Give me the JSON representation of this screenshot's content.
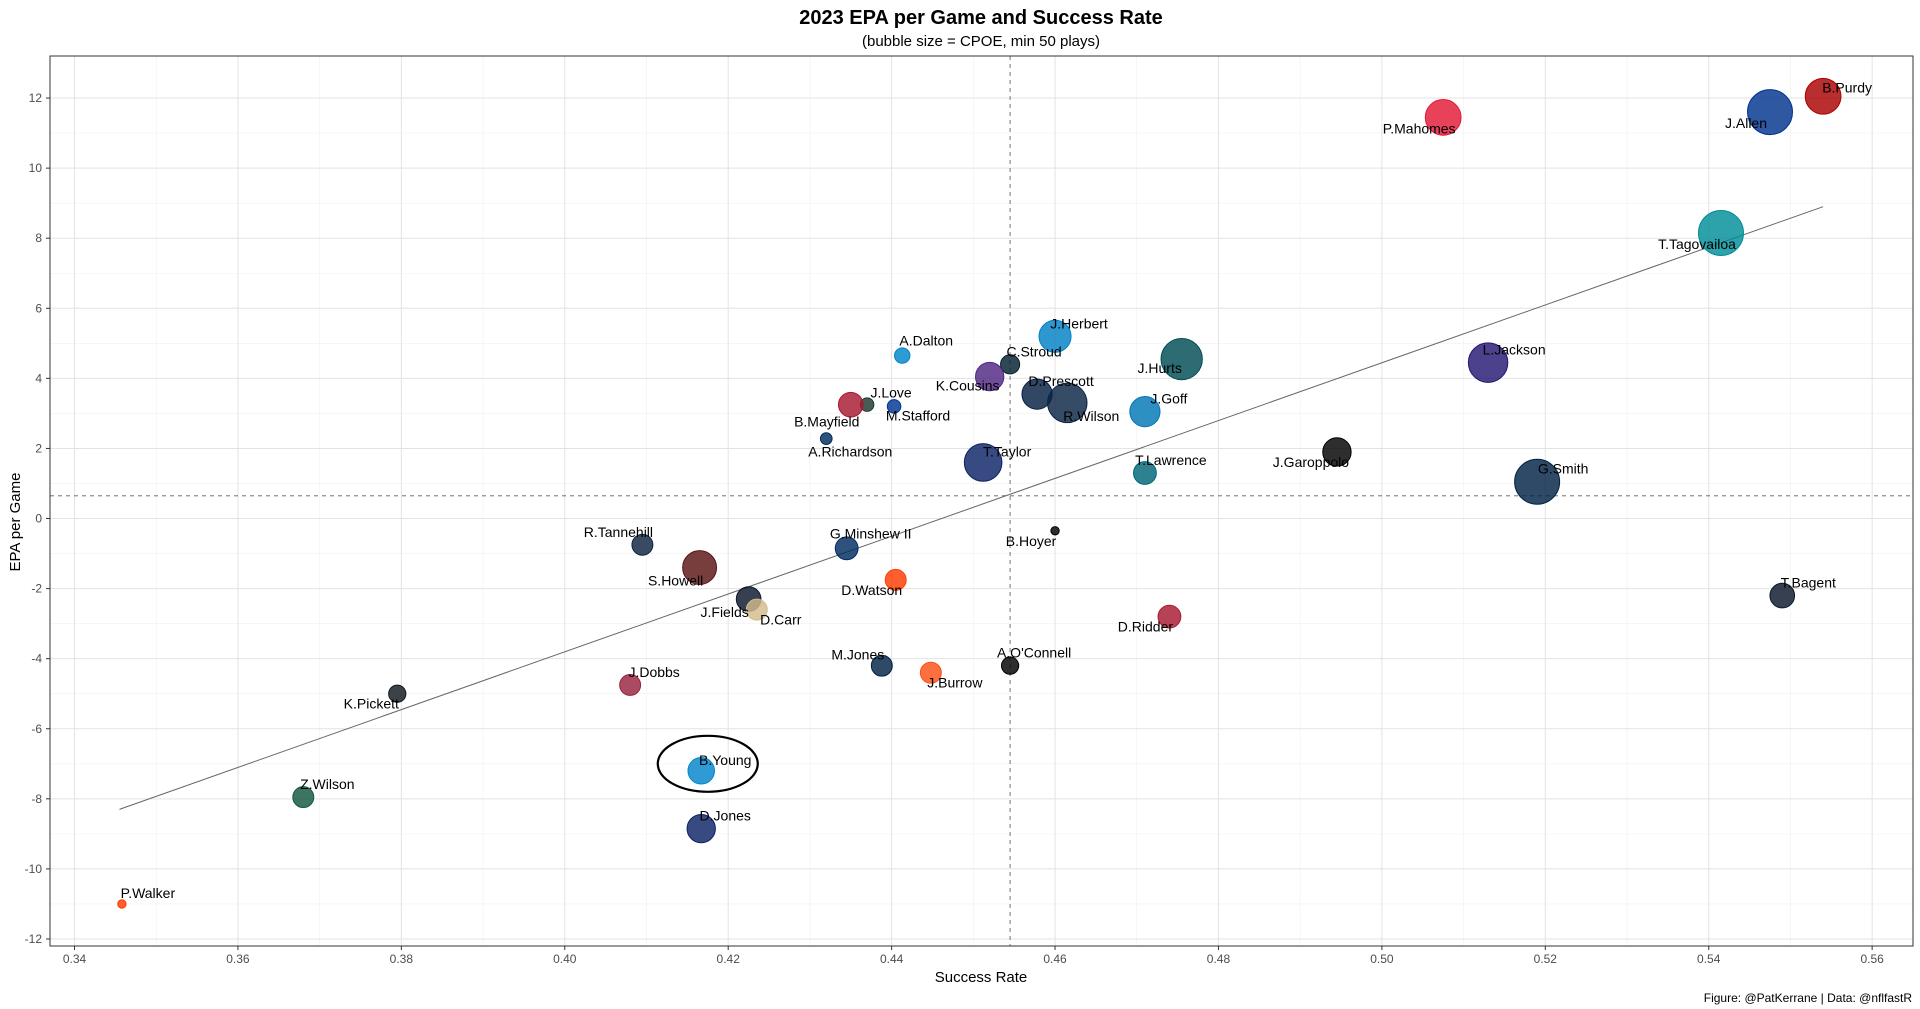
{
  "chart_data": {
    "type": "scatter",
    "title": "2023 EPA per Game and Success Rate",
    "subtitle": "(bubble size = CPOE, min 50 plays)",
    "xlabel": "Success Rate",
    "ylabel": "EPA per Game",
    "caption": "Figure: @PatKerrane | Data: @nflfastR",
    "xlim": [
      0.337,
      0.565
    ],
    "ylim": [
      -12.2,
      13.2
    ],
    "xticks": [
      0.34,
      0.36,
      0.38,
      0.4,
      0.42,
      0.44,
      0.46,
      0.48,
      0.5,
      0.52,
      0.54,
      0.56
    ],
    "xtick_labels": [
      "0.34",
      "0.36",
      "0.38",
      "0.40",
      "0.42",
      "0.44",
      "0.46",
      "0.48",
      "0.50",
      "0.52",
      "0.54",
      "0.56"
    ],
    "yticks": [
      -12,
      -10,
      -8,
      -6,
      -4,
      -2,
      0,
      2,
      4,
      6,
      8,
      10,
      12
    ],
    "ytick_labels": [
      "-12",
      "-10",
      "-8",
      "-6",
      "-4",
      "-2",
      "0",
      "2",
      "4",
      "6",
      "8",
      "10",
      "12"
    ],
    "grid": true,
    "mean_lines": {
      "x": 0.4545,
      "y": 0.65
    },
    "trend_line": {
      "x": [
        0.3455,
        0.554
      ],
      "y": [
        -8.3,
        8.9
      ]
    },
    "highlight": {
      "label": "B.Young",
      "x": 0.4175,
      "y": -7.0
    },
    "points": [
      {
        "label": "B.Purdy",
        "x": 0.554,
        "y": 12.05,
        "size": 7.5,
        "color": "#AA0000"
      },
      {
        "label": "J.Allen",
        "x": 0.5475,
        "y": 11.6,
        "size": 10,
        "color": "#00338D"
      },
      {
        "label": "P.Mahomes",
        "x": 0.5075,
        "y": 11.45,
        "size": 7.5,
        "color": "#E31837"
      },
      {
        "label": "T.Tagovailoa",
        "x": 0.5415,
        "y": 8.15,
        "size": 10,
        "color": "#008E97"
      },
      {
        "label": "L.Jackson",
        "x": 0.513,
        "y": 4.45,
        "size": 8.5,
        "color": "#241773"
      },
      {
        "label": "J.Herbert",
        "x": 0.46,
        "y": 5.2,
        "size": 6.5,
        "color": "#0080C6"
      },
      {
        "label": "J.Hurts",
        "x": 0.4755,
        "y": 4.55,
        "size": 9,
        "color": "#004C54"
      },
      {
        "label": "A.Dalton",
        "x": 0.4413,
        "y": 4.65,
        "size": 2,
        "color": "#0085CA"
      },
      {
        "label": "C.Stroud",
        "x": 0.4545,
        "y": 4.4,
        "size": 3,
        "color": "#03202F"
      },
      {
        "label": "K.Cousins",
        "x": 0.452,
        "y": 4.05,
        "size": 5.5,
        "color": "#4F2683"
      },
      {
        "label": "D.Prescott",
        "x": 0.4578,
        "y": 3.55,
        "size": 6,
        "color": "#041E42"
      },
      {
        "label": "R.Wilson",
        "x": 0.4615,
        "y": 3.3,
        "size": 8.5,
        "color": "#0A2343"
      },
      {
        "label": "J.Goff",
        "x": 0.471,
        "y": 3.05,
        "size": 6,
        "color": "#0076B6"
      },
      {
        "label": "J.Love",
        "x": 0.437,
        "y": 3.25,
        "size": 1.5,
        "color": "#203731"
      },
      {
        "label": "B.Mayfield",
        "x": 0.435,
        "y": 3.25,
        "size": 4.5,
        "color": "#A71930"
      },
      {
        "label": "M.Stafford",
        "x": 0.4403,
        "y": 3.2,
        "size": 1.5,
        "color": "#003594"
      },
      {
        "label": "A.Richardson",
        "x": 0.432,
        "y": 2.28,
        "size": 1,
        "color": "#002C5F"
      },
      {
        "label": "T.Taylor",
        "x": 0.4512,
        "y": 1.6,
        "size": 8,
        "color": "#0B2265"
      },
      {
        "label": "T.Lawrence",
        "x": 0.471,
        "y": 1.3,
        "size": 4,
        "color": "#006778"
      },
      {
        "label": "J.Garoppolo",
        "x": 0.4945,
        "y": 1.9,
        "size": 5.5,
        "color": "#000000"
      },
      {
        "label": "G.Smith",
        "x": 0.519,
        "y": 1.05,
        "size": 10,
        "color": "#002244"
      },
      {
        "label": "R.Tannehill",
        "x": 0.4095,
        "y": -0.75,
        "size": 3.5,
        "color": "#0C2340"
      },
      {
        "label": "S.Howell",
        "x": 0.4165,
        "y": -1.4,
        "size": 7,
        "color": "#5A1414"
      },
      {
        "label": "G.Minshew II",
        "x": 0.4345,
        "y": -0.85,
        "size": 4,
        "color": "#002C5F"
      },
      {
        "label": "B.Hoyer",
        "x": 0.46,
        "y": -0.35,
        "size": 0.1,
        "color": "#000000"
      },
      {
        "label": "D.Watson",
        "x": 0.4405,
        "y": -1.75,
        "size": 3.5,
        "color": "#FF3C00"
      },
      {
        "label": "J.Fields",
        "x": 0.4225,
        "y": -2.3,
        "size": 4.5,
        "color": "#0B162A"
      },
      {
        "label": "D.Carr",
        "x": 0.4235,
        "y": -2.6,
        "size": 3.5,
        "color": "#D3BC8D"
      },
      {
        "label": "D.Ridder",
        "x": 0.474,
        "y": -2.8,
        "size": 4,
        "color": "#A71930"
      },
      {
        "label": "T.Bagent",
        "x": 0.549,
        "y": -2.2,
        "size": 4.5,
        "color": "#0B162A"
      },
      {
        "label": "M.Jones",
        "x": 0.4388,
        "y": -4.2,
        "size": 3.5,
        "color": "#002244"
      },
      {
        "label": "A.O'Connell",
        "x": 0.4545,
        "y": -4.2,
        "size": 2.5,
        "color": "#000000"
      },
      {
        "label": "J.Burrow",
        "x": 0.4448,
        "y": -4.4,
        "size": 3.5,
        "color": "#FB4F14"
      },
      {
        "label": "J.Dobbs",
        "x": 0.408,
        "y": -4.75,
        "size": 3.5,
        "color": "#97233F"
      },
      {
        "label": "K.Pickett",
        "x": 0.3795,
        "y": -5.0,
        "size": 2.5,
        "color": "#101820"
      },
      {
        "label": "B.Young",
        "x": 0.4167,
        "y": -7.2,
        "size": 5,
        "color": "#0085CA"
      },
      {
        "label": "Z.Wilson",
        "x": 0.368,
        "y": -7.95,
        "size": 3.5,
        "color": "#125740"
      },
      {
        "label": "D.Jones",
        "x": 0.4167,
        "y": -8.85,
        "size": 5.5,
        "color": "#0B2265"
      },
      {
        "label": "P.Walker",
        "x": 0.3458,
        "y": -11.0,
        "size": 0.1,
        "color": "#FF3C00"
      }
    ]
  }
}
